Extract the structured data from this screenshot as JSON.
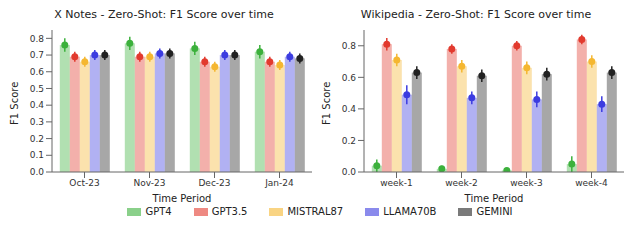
{
  "chart_data": [
    {
      "type": "bar",
      "title": "X Notes - Zero-Shot: F1 Score over time",
      "x_label": "Time Period",
      "y_label": "F1 Score",
      "categories": [
        "Oct-23",
        "Nov-23",
        "Dec-23",
        "Jan-24"
      ],
      "series": [
        {
          "name": "GPT4",
          "color": "#3cb13c",
          "values": [
            0.76,
            0.77,
            0.74,
            0.72
          ],
          "errors": [
            0.04,
            0.04,
            0.04,
            0.04
          ]
        },
        {
          "name": "GPT3.5",
          "color": "#e23a2e",
          "values": [
            0.69,
            0.69,
            0.66,
            0.66
          ],
          "errors": [
            0.03,
            0.03,
            0.03,
            0.03
          ]
        },
        {
          "name": "MISTRAL87",
          "color": "#f5b731",
          "values": [
            0.66,
            0.69,
            0.63,
            0.64
          ],
          "errors": [
            0.03,
            0.03,
            0.03,
            0.03
          ]
        },
        {
          "name": "LLAMA70B",
          "color": "#3c3ce0",
          "values": [
            0.7,
            0.71,
            0.7,
            0.69
          ],
          "errors": [
            0.03,
            0.03,
            0.03,
            0.03
          ]
        },
        {
          "name": "GEMINI",
          "color": "#222222",
          "values": [
            0.7,
            0.71,
            0.7,
            0.68
          ],
          "errors": [
            0.03,
            0.03,
            0.03,
            0.03
          ]
        }
      ],
      "ylim": [
        0,
        0.85
      ],
      "yticks": [
        {
          "value": 0,
          "label": "0.0"
        },
        0.1,
        0.2,
        0.3,
        0.4,
        0.5,
        0.6,
        0.7,
        0.8
      ],
      "grid": false,
      "legend": "bottom"
    },
    {
      "type": "bar",
      "title": "Wikipedia - Zero-Shot: F1 Score over time",
      "x_label": "Time Period",
      "y_label": "F1 Score",
      "categories": [
        "week-1",
        "week-2",
        "week-3",
        "week-4"
      ],
      "series": [
        {
          "name": "GPT4",
          "color": "#3cb13c",
          "values": [
            0.04,
            0.02,
            0.01,
            0.05
          ],
          "errors": [
            0.04,
            0.02,
            0.01,
            0.05
          ]
        },
        {
          "name": "GPT3.5",
          "color": "#e23a2e",
          "values": [
            0.81,
            0.78,
            0.8,
            0.84
          ],
          "errors": [
            0.04,
            0.03,
            0.03,
            0.03
          ]
        },
        {
          "name": "MISTRAL87",
          "color": "#f5b731",
          "values": [
            0.71,
            0.67,
            0.66,
            0.7
          ],
          "errors": [
            0.04,
            0.04,
            0.04,
            0.04
          ]
        },
        {
          "name": "LLAMA70B",
          "color": "#3c3ce0",
          "values": [
            0.49,
            0.47,
            0.46,
            0.43
          ],
          "errors": [
            0.06,
            0.04,
            0.05,
            0.05
          ]
        },
        {
          "name": "GEMINI",
          "color": "#222222",
          "values": [
            0.63,
            0.61,
            0.62,
            0.63
          ],
          "errors": [
            0.04,
            0.04,
            0.04,
            0.04
          ]
        }
      ],
      "ylim": [
        0,
        0.9
      ],
      "yticks": [
        {
          "value": 0,
          "label": "0.0"
        },
        0.2,
        0.4,
        0.6,
        0.8
      ],
      "grid": false,
      "legend": "bottom"
    }
  ]
}
